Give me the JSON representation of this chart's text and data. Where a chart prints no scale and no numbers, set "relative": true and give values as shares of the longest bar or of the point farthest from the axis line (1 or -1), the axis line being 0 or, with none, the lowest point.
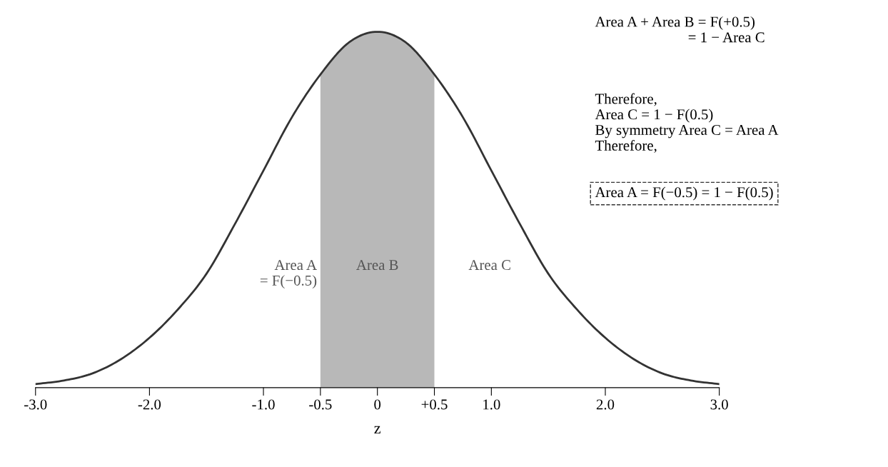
{
  "chart_data": {
    "type": "line",
    "relative": true,
    "xlabel": "z",
    "x": [
      -3.0,
      -2.75,
      -2.5,
      -2.25,
      -2.0,
      -1.75,
      -1.5,
      -1.25,
      -1.0,
      -0.75,
      -0.5,
      -0.25,
      0,
      0.25,
      0.5,
      0.75,
      1.0,
      1.25,
      1.5,
      1.75,
      2.0,
      2.25,
      2.5,
      2.75,
      3.0
    ],
    "series": [
      {
        "color": "#333333",
        "values": [
          0.01,
          0.02,
          0.04,
          0.08,
          0.14,
          0.22,
          0.32,
          0.46,
          0.61,
          0.76,
          0.88,
          0.97,
          1,
          0.97,
          0.88,
          0.76,
          0.61,
          0.46,
          0.32,
          0.22,
          0.14,
          0.08,
          0.04,
          0.02,
          0.01
        ]
      }
    ],
    "xlim": [
      -3.0,
      3.0
    ],
    "xticks": [
      {
        "value": -3.0,
        "label": "-3.0"
      },
      {
        "value": -2.0,
        "label": "-2.0"
      },
      {
        "value": -1.0,
        "label": "-1.0"
      },
      {
        "value": -0.5,
        "label": "-0.5"
      },
      0,
      {
        "value": 0.5,
        "label": "+0.5"
      },
      {
        "value": 1.0,
        "label": "1.0"
      },
      {
        "value": 2.0,
        "label": "2.0"
      },
      {
        "value": 3.0,
        "label": "3.0"
      }
    ],
    "bands": [
      {
        "axis": "x",
        "from": -0.5,
        "to": 0.5,
        "color": "#b8b8b8"
      }
    ],
    "annotations": [
      "Area A\n   = F(−0.5)",
      "Area B",
      "Area C",
      "Area A + Area B = F(+0.5)\n                         = 1 − Area C",
      "Therefore,\nArea C = 1 − F(0.5)\nBy symmetry Area C = Area A\nTherefore,",
      "Area A = F(−0.5) = 1 − F(0.5)"
    ]
  }
}
